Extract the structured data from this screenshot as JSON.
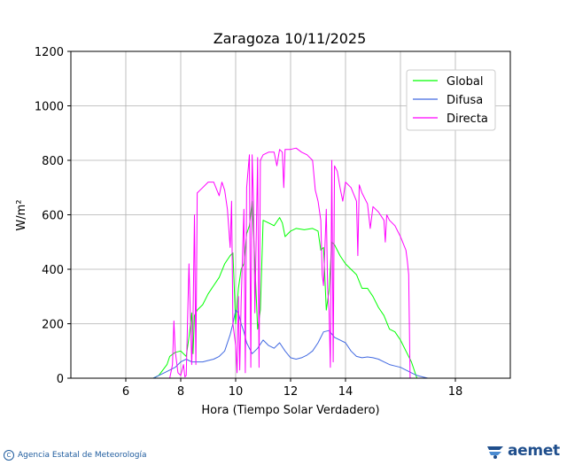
{
  "chart_data": {
    "type": "line",
    "title": "Zaragoza 10/11/2025",
    "xlabel": "Hora (Tiempo Solar Verdadero)",
    "ylabel": "W/m²",
    "xlim": [
      4,
      20
    ],
    "ylim": [
      0,
      1200
    ],
    "xticks": [
      6,
      8,
      10,
      12,
      14,
      18
    ],
    "yticks": [
      0,
      200,
      400,
      600,
      800,
      1000,
      1200
    ],
    "grid": true,
    "legend_position": "top-right",
    "series": [
      {
        "name": "Global",
        "color": "#00ff00",
        "x": [
          4,
          7.0,
          7.2,
          7.5,
          7.6,
          7.8,
          8.0,
          8.2,
          8.3,
          8.4,
          8.45,
          8.5,
          8.6,
          8.8,
          9.0,
          9.2,
          9.4,
          9.6,
          9.8,
          9.9,
          10.0,
          10.1,
          10.2,
          10.3,
          10.4,
          10.5,
          10.6,
          10.7,
          10.8,
          10.9,
          11.0,
          11.2,
          11.4,
          11.6,
          11.7,
          11.8,
          12.0,
          12.2,
          12.5,
          12.8,
          13.0,
          13.1,
          13.2,
          13.3,
          13.4,
          13.5,
          13.6,
          13.7,
          13.8,
          14.0,
          14.2,
          14.4,
          14.6,
          14.8,
          15.0,
          15.2,
          15.4,
          15.6,
          15.8,
          16.0,
          16.2,
          16.4,
          16.6,
          20
        ],
        "y": [
          0,
          0,
          10,
          50,
          80,
          95,
          100,
          80,
          150,
          240,
          90,
          230,
          250,
          270,
          310,
          340,
          370,
          420,
          450,
          460,
          200,
          330,
          400,
          420,
          530,
          560,
          650,
          420,
          180,
          250,
          580,
          570,
          560,
          590,
          570,
          520,
          540,
          550,
          545,
          550,
          540,
          470,
          480,
          250,
          320,
          500,
          490,
          470,
          450,
          420,
          400,
          380,
          330,
          330,
          300,
          260,
          230,
          180,
          170,
          140,
          100,
          60,
          0,
          0
        ]
      },
      {
        "name": "Difusa",
        "color": "#4169e1",
        "x": [
          4,
          7.0,
          7.2,
          7.4,
          7.6,
          7.8,
          8.0,
          8.2,
          8.4,
          8.6,
          8.8,
          9.0,
          9.2,
          9.4,
          9.6,
          9.8,
          9.9,
          10.0,
          10.1,
          10.2,
          10.3,
          10.4,
          10.5,
          10.6,
          10.7,
          10.8,
          11.0,
          11.2,
          11.4,
          11.6,
          11.8,
          12.0,
          12.2,
          12.4,
          12.6,
          12.8,
          13.0,
          13.2,
          13.4,
          13.6,
          13.8,
          14.0,
          14.2,
          14.4,
          14.6,
          14.8,
          15.0,
          15.2,
          15.4,
          15.6,
          15.8,
          16.0,
          16.2,
          16.4,
          16.6,
          16.8,
          17.0,
          20
        ],
        "y": [
          0,
          0,
          10,
          20,
          30,
          40,
          60,
          70,
          60,
          60,
          60,
          65,
          70,
          80,
          100,
          160,
          200,
          250,
          240,
          200,
          170,
          130,
          110,
          90,
          100,
          110,
          140,
          120,
          110,
          130,
          100,
          75,
          70,
          75,
          85,
          100,
          130,
          170,
          175,
          150,
          140,
          130,
          100,
          80,
          75,
          78,
          75,
          70,
          60,
          50,
          45,
          40,
          30,
          20,
          10,
          5,
          0,
          0
        ]
      },
      {
        "name": "Directa",
        "color": "#ff00ff",
        "x": [
          4,
          7.6,
          7.7,
          7.75,
          7.8,
          7.9,
          8.0,
          8.1,
          8.15,
          8.2,
          8.3,
          8.4,
          8.45,
          8.5,
          8.55,
          8.6,
          8.7,
          8.8,
          9.0,
          9.2,
          9.4,
          9.5,
          9.6,
          9.7,
          9.8,
          9.85,
          9.9,
          10.0,
          10.05,
          10.1,
          10.15,
          10.2,
          10.3,
          10.35,
          10.4,
          10.5,
          10.55,
          10.6,
          10.65,
          10.7,
          10.8,
          10.85,
          10.9,
          11.0,
          11.2,
          11.4,
          11.5,
          11.6,
          11.7,
          11.75,
          11.8,
          12.0,
          12.2,
          12.4,
          12.6,
          12.8,
          12.9,
          13.0,
          13.1,
          13.15,
          13.2,
          13.3,
          13.35,
          13.4,
          13.45,
          13.5,
          13.55,
          13.6,
          13.7,
          13.8,
          13.9,
          14.0,
          14.2,
          14.4,
          14.45,
          14.5,
          14.6,
          14.8,
          14.9,
          15.0,
          15.2,
          15.4,
          15.45,
          15.5,
          15.6,
          15.8,
          16.0,
          16.2,
          16.25,
          16.3,
          16.35,
          20
        ],
        "y": [
          0,
          0,
          50,
          210,
          100,
          20,
          10,
          50,
          5,
          10,
          420,
          50,
          220,
          600,
          50,
          680,
          690,
          700,
          720,
          720,
          670,
          720,
          690,
          620,
          480,
          650,
          200,
          120,
          20,
          300,
          30,
          280,
          620,
          20,
          700,
          820,
          40,
          820,
          650,
          240,
          810,
          40,
          800,
          820,
          830,
          830,
          780,
          840,
          830,
          700,
          840,
          840,
          845,
          830,
          820,
          800,
          690,
          650,
          580,
          380,
          340,
          620,
          330,
          250,
          40,
          800,
          60,
          780,
          760,
          700,
          650,
          720,
          700,
          650,
          450,
          710,
          680,
          640,
          550,
          630,
          610,
          580,
          500,
          600,
          580,
          560,
          520,
          470,
          430,
          380,
          0,
          0
        ]
      }
    ]
  },
  "footer": {
    "agency": "Agencia Estatal de Meteorología",
    "logo_text": "aemet"
  }
}
